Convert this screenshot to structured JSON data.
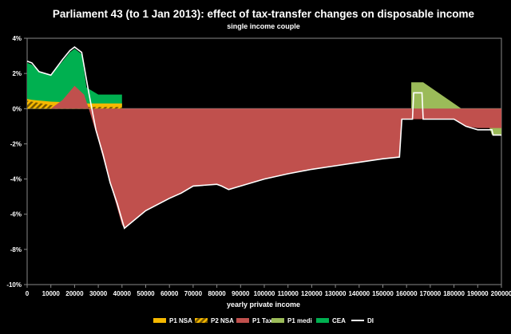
{
  "chart_data": {
    "type": "area",
    "title": "Parliament  43 (to 1 Jan 2013): effect of tax-transfer  changes on disposable  income",
    "subtitle": "single income couple",
    "xlabel": "yearly private income",
    "ylabel": "",
    "xlim": [
      0,
      200000
    ],
    "ylim": [
      -10,
      4
    ],
    "x_ticks": [
      "0",
      "10000",
      "20000",
      "30000",
      "40000",
      "50000",
      "60000",
      "70000",
      "80000",
      "90000",
      "100000",
      "110000",
      "120000",
      "130000",
      "140000",
      "150000",
      "160000",
      "170000",
      "180000",
      "190000",
      "200000"
    ],
    "y_ticks": [
      "4%",
      "2%",
      "0%",
      "-2%",
      "-4%",
      "-6%",
      "-8%",
      "-10%"
    ],
    "y_tick_values": [
      4,
      2,
      0,
      -2,
      -4,
      -6,
      -8,
      -10
    ],
    "colors": {
      "p1_nsa": "#f5b800",
      "p2_nsa": "#d9a000",
      "p1_tax": "#c0504d",
      "p1_medi": "#9bbb59",
      "cea": "#00b050",
      "di": "#ffffff"
    },
    "series": [
      {
        "name": "P1 NSA",
        "color": "#f5b800",
        "points": [
          [
            0,
            0.55
          ],
          [
            2000,
            0.5
          ],
          [
            10000,
            0.4
          ],
          [
            20000,
            0.35
          ],
          [
            25000,
            0.3
          ],
          [
            30000,
            0.3
          ],
          [
            40000,
            0.3
          ],
          [
            40001,
            0
          ]
        ]
      },
      {
        "name": "P2 NSA",
        "color": "#d9a000",
        "pattern": "hatch",
        "points": [
          [
            0,
            0.45
          ],
          [
            2000,
            0.4
          ],
          [
            10000,
            0.2
          ],
          [
            20000,
            0.15
          ],
          [
            25000,
            0.1
          ],
          [
            30000,
            0.1
          ],
          [
            40000,
            0.1
          ],
          [
            40001,
            0
          ]
        ]
      },
      {
        "name": "P1 Tax",
        "color": "#c0504d",
        "points": [
          [
            0,
            0
          ],
          [
            10000,
            0
          ],
          [
            15000,
            0.5
          ],
          [
            20000,
            1.3
          ],
          [
            24000,
            0.8
          ],
          [
            26000,
            0
          ],
          [
            30000,
            -1.8
          ],
          [
            33000,
            -3.3
          ],
          [
            36000,
            -4.7
          ],
          [
            40000,
            -6.6
          ],
          [
            41000,
            -6.8
          ],
          [
            50000,
            -5.8
          ],
          [
            60000,
            -5.1
          ],
          [
            65000,
            -4.8
          ],
          [
            70000,
            -4.4
          ],
          [
            80000,
            -4.3
          ],
          [
            82000,
            -4.4
          ],
          [
            85000,
            -4.6
          ],
          [
            90000,
            -4.4
          ],
          [
            100000,
            -4.0
          ],
          [
            110000,
            -3.7
          ],
          [
            120000,
            -3.45
          ],
          [
            130000,
            -3.25
          ],
          [
            140000,
            -3.05
          ],
          [
            150000,
            -2.85
          ],
          [
            157000,
            -2.75
          ],
          [
            158000,
            -0.6
          ],
          [
            163000,
            -0.6
          ],
          [
            163500,
            -0.6
          ],
          [
            167000,
            -0.6
          ],
          [
            167500,
            -0.6
          ],
          [
            180000,
            -0.6
          ],
          [
            185000,
            -1.0
          ],
          [
            190000,
            -1.1
          ],
          [
            195000,
            -1.1
          ],
          [
            200000,
            -1.1
          ]
        ]
      },
      {
        "name": "P1 medi",
        "color": "#9bbb59",
        "points": [
          [
            162000,
            1.5
          ],
          [
            167000,
            1.5
          ],
          [
            195000,
            -1.1
          ],
          [
            196000,
            -1.5
          ],
          [
            200000,
            -1.5
          ]
        ]
      },
      {
        "name": "CEA",
        "color": "#00b050",
        "points": [
          [
            0,
            2.6
          ],
          [
            2000,
            2.5
          ],
          [
            5000,
            2.1
          ],
          [
            10000,
            1.9
          ],
          [
            15000,
            2.7
          ],
          [
            18000,
            3.2
          ],
          [
            20000,
            3.4
          ],
          [
            23000,
            3.1
          ],
          [
            25000,
            1.2
          ],
          [
            30000,
            0.8
          ],
          [
            40000,
            0.8
          ],
          [
            40001,
            0
          ]
        ]
      },
      {
        "name": "DI",
        "color": "#ffffff",
        "points": [
          [
            0,
            2.7
          ],
          [
            2000,
            2.6
          ],
          [
            5000,
            2.1
          ],
          [
            10000,
            1.9
          ],
          [
            15000,
            2.8
          ],
          [
            18000,
            3.3
          ],
          [
            20000,
            3.5
          ],
          [
            23000,
            3.2
          ],
          [
            26000,
            0.9
          ],
          [
            29000,
            -1.2
          ],
          [
            32000,
            -2.6
          ],
          [
            35000,
            -4.2
          ],
          [
            38000,
            -5.4
          ],
          [
            41000,
            -6.8
          ],
          [
            50000,
            -5.8
          ],
          [
            60000,
            -5.1
          ],
          [
            65000,
            -4.8
          ],
          [
            70000,
            -4.4
          ],
          [
            80000,
            -4.3
          ],
          [
            82000,
            -4.4
          ],
          [
            85000,
            -4.6
          ],
          [
            90000,
            -4.4
          ],
          [
            100000,
            -4.0
          ],
          [
            110000,
            -3.7
          ],
          [
            120000,
            -3.45
          ],
          [
            130000,
            -3.25
          ],
          [
            140000,
            -3.05
          ],
          [
            150000,
            -2.85
          ],
          [
            157000,
            -2.75
          ],
          [
            158000,
            -0.6
          ],
          [
            162500,
            -0.6
          ],
          [
            163000,
            0.9
          ],
          [
            166500,
            0.9
          ],
          [
            167000,
            -0.6
          ],
          [
            180000,
            -0.6
          ],
          [
            185000,
            -1.0
          ],
          [
            190000,
            -1.2
          ],
          [
            196000,
            -1.2
          ],
          [
            196500,
            -1.5
          ],
          [
            200000,
            -1.5
          ]
        ]
      }
    ],
    "legend": {
      "position": "bottom",
      "items": [
        "P1 NSA",
        "P2 NSA",
        "P1 Tax",
        "P1 medi",
        "CEA",
        "DI"
      ]
    }
  }
}
